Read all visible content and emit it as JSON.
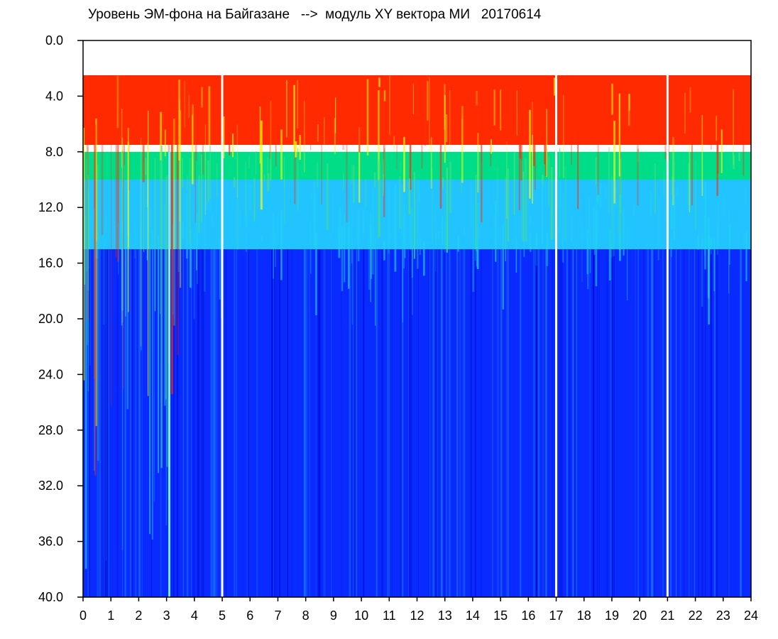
{
  "chart_data": {
    "type": "heatmap",
    "title": "Уровень ЭМ-фона на Байгазане   -->  модуль XY вектора МИ   20170614",
    "xlabel": "",
    "ylabel": "",
    "xlim": [
      0,
      24
    ],
    "ylim": [
      40,
      0
    ],
    "x_ticks": [
      "0",
      "1",
      "2",
      "3",
      "4",
      "5",
      "6",
      "7",
      "8",
      "9",
      "10",
      "11",
      "12",
      "13",
      "14",
      "15",
      "16",
      "17",
      "18",
      "19",
      "20",
      "21",
      "22",
      "23",
      "24"
    ],
    "y_ticks": [
      "0.0",
      "4.0",
      "8.0",
      "12.0",
      "16.0",
      "20.0",
      "24.0",
      "28.0",
      "32.0",
      "36.0",
      "40.0"
    ],
    "colormap": [
      "#0000cc",
      "#0a2bff",
      "#1e90ff",
      "#22d3ee",
      "#4ade80",
      "#ffff00",
      "#ff2a00"
    ],
    "bands": [
      {
        "from": 2.5,
        "to": 7.5,
        "level": "high",
        "color": "#ff2a00"
      },
      {
        "from": 8.0,
        "to": 10.0,
        "level": "medium-high",
        "color": "#00dd88"
      },
      {
        "from": 10.0,
        "to": 15.0,
        "level": "medium",
        "color": "#22c4ff"
      },
      {
        "from": 15.0,
        "to": 40.0,
        "level": "low",
        "color": "#0a2bff"
      }
    ],
    "vertical_features": [
      {
        "x": 3.1,
        "kind": "bright streak"
      },
      {
        "x": 5.0,
        "kind": "gap"
      },
      {
        "x": 17.0,
        "kind": "gap"
      },
      {
        "x": 21.0,
        "kind": "gap"
      }
    ],
    "grid": false,
    "legend": "none"
  }
}
